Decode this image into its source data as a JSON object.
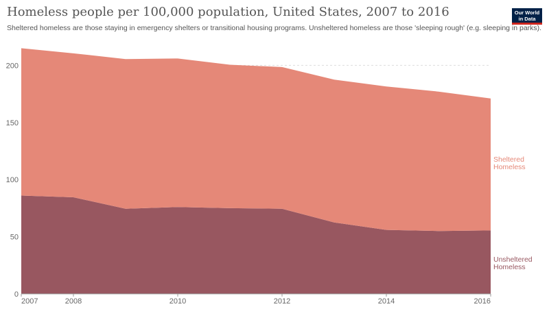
{
  "title": "Homeless people per 100,000 population, United States, 2007 to 2016",
  "subtitle": "Sheltered homeless are those staying in emergency shelters or transitional housing programs. Unsheltered homeless are those 'sleeping rough' (e.g. sleeping in parks).",
  "logo": {
    "line1": "Our World",
    "line2": "in Data"
  },
  "colors": {
    "sheltered": "#e58878",
    "unsheltered": "#985760",
    "grid": "#dddddd"
  },
  "chart_data": {
    "type": "area",
    "stacked": true,
    "x": [
      2007,
      2008,
      2009,
      2010,
      2011,
      2012,
      2013,
      2014,
      2015,
      2016
    ],
    "xticks": [
      2007,
      2008,
      2010,
      2012,
      2014,
      2016
    ],
    "yticks": [
      0,
      50,
      100,
      150,
      200
    ],
    "ylim": [
      0,
      220
    ],
    "series": [
      {
        "name": "Unsheltered Homeless",
        "values": [
          86,
          84.5,
          74.5,
          76,
          75,
          74.5,
          62.5,
          56,
          55,
          55.5
        ]
      },
      {
        "name": "Sheltered Homeless",
        "values": [
          129,
          126,
          131,
          130,
          125.5,
          124,
          125,
          125.5,
          122,
          115.5
        ]
      }
    ]
  }
}
